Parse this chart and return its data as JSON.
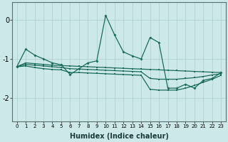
{
  "xlabel": "Humidex (Indice chaleur)",
  "bg_color": "#cce8e8",
  "grid_color": "#aacfcf",
  "line_color": "#1a6b5a",
  "xlim": [
    -0.5,
    23.5
  ],
  "ylim": [
    -2.6,
    0.45
  ],
  "yticks": [
    0,
    -1,
    -2
  ],
  "ytick_labels": [
    "0",
    "-1",
    "-2"
  ],
  "x_main": [
    0,
    1,
    2,
    3,
    4,
    5,
    6,
    7,
    8,
    9,
    10,
    11,
    12,
    13,
    14,
    15,
    16,
    17,
    18,
    19,
    20,
    21,
    22,
    23
  ],
  "y_main": [
    -1.2,
    -0.75,
    -0.9,
    -1.0,
    -1.1,
    -1.15,
    -1.4,
    -1.25,
    -1.1,
    -1.05,
    0.12,
    -0.38,
    -0.82,
    -0.92,
    -1.0,
    -0.45,
    -0.58,
    -1.75,
    -1.75,
    -1.65,
    -1.75,
    -1.55,
    -1.5,
    -1.35
  ],
  "y_upper": [
    -1.2,
    -1.1,
    -1.12,
    -1.14,
    -1.16,
    -1.17,
    -1.18,
    -1.19,
    -1.2,
    -1.21,
    -1.22,
    -1.23,
    -1.24,
    -1.25,
    -1.26,
    -1.27,
    -1.28,
    -1.29,
    -1.3,
    -1.31,
    -1.32,
    -1.33,
    -1.34,
    -1.35
  ],
  "y_lower": [
    -1.2,
    -1.18,
    -1.22,
    -1.25,
    -1.27,
    -1.28,
    -1.35,
    -1.35,
    -1.36,
    -1.37,
    -1.38,
    -1.39,
    -1.4,
    -1.41,
    -1.42,
    -1.78,
    -1.8,
    -1.8,
    -1.8,
    -1.75,
    -1.68,
    -1.6,
    -1.52,
    -1.42
  ],
  "y_mid": [
    -1.2,
    -1.14,
    -1.16,
    -1.18,
    -1.2,
    -1.22,
    -1.25,
    -1.26,
    -1.27,
    -1.28,
    -1.29,
    -1.3,
    -1.31,
    -1.32,
    -1.33,
    -1.5,
    -1.52,
    -1.52,
    -1.52,
    -1.5,
    -1.48,
    -1.45,
    -1.41,
    -1.38
  ],
  "xlabel_fontsize": 7,
  "xlabel_fontweight": "bold",
  "xlabel_color": "#1a3a3a",
  "ytick_fontsize": 7,
  "xtick_fontsize": 5,
  "lw": 0.9,
  "ms": 2.0
}
